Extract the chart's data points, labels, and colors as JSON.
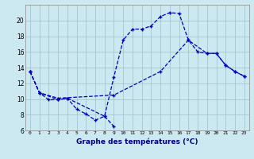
{
  "bg_color": "#cce8f0",
  "grid_color": "#9bbfcc",
  "line_color": "#0000bb",
  "xlabel": "Graphe des températures (°C)",
  "curve1_x": [
    0,
    1,
    3,
    4,
    8,
    9,
    10,
    11,
    12,
    13,
    14,
    15,
    16,
    17,
    18,
    19,
    20,
    21,
    22,
    23
  ],
  "curve1_y": [
    13.5,
    10.8,
    9.9,
    10.1,
    7.8,
    12.8,
    17.5,
    18.9,
    18.9,
    19.3,
    20.5,
    21.0,
    20.9,
    17.5,
    16.0,
    15.8,
    15.8,
    14.3,
    13.5,
    12.9
  ],
  "curve2_x": [
    0,
    1,
    2,
    3,
    4,
    5,
    6,
    7,
    8,
    9
  ],
  "curve2_y": [
    13.5,
    10.8,
    9.9,
    9.9,
    10.1,
    8.7,
    8.1,
    7.3,
    7.8,
    6.5
  ],
  "curve3_x": [
    0,
    1,
    3,
    9,
    14,
    17,
    19,
    20,
    21,
    22,
    23
  ],
  "curve3_y": [
    13.5,
    10.8,
    10.1,
    10.5,
    13.5,
    17.5,
    15.8,
    15.8,
    14.3,
    13.5,
    12.9
  ],
  "ylim": [
    6,
    22
  ],
  "yticks": [
    6,
    8,
    10,
    12,
    14,
    16,
    18,
    20
  ],
  "xticks": [
    0,
    1,
    2,
    3,
    4,
    5,
    6,
    7,
    8,
    9,
    10,
    11,
    12,
    13,
    14,
    15,
    16,
    17,
    18,
    19,
    20,
    21,
    22,
    23
  ]
}
